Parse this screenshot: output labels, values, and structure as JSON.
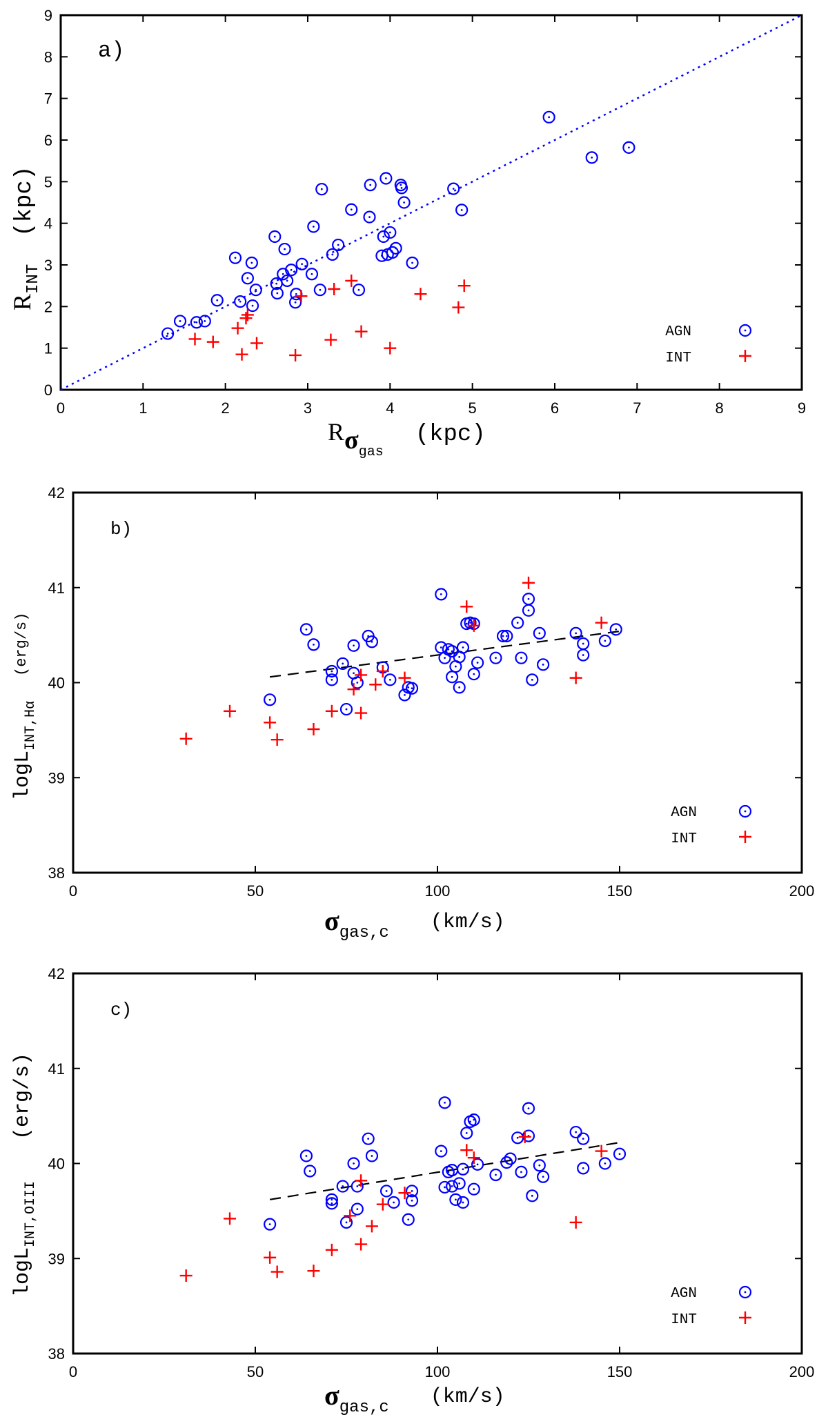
{
  "colors": {
    "agn": "#0000ff",
    "int": "#ff0000",
    "fit": "#000000",
    "diag": "#0000ff"
  },
  "chart_data": [
    {
      "type": "scatter",
      "panel_label": "a)",
      "x_axis_symbol": "R",
      "x_axis_sub": "σ",
      "x_axis_subsub": "gas",
      "x_axis_unit": "(kpc)",
      "y_axis_symbol": "R",
      "y_axis_sub": "INT",
      "y_axis_unit": "(kpc)",
      "xlim": [
        0,
        9
      ],
      "ylim": [
        0,
        9
      ],
      "x_ticks": [
        0,
        1,
        2,
        3,
        4,
        5,
        6,
        7,
        8,
        9
      ],
      "y_ticks": [
        0,
        1,
        2,
        3,
        4,
        5,
        6,
        7,
        8,
        9
      ],
      "legend": [
        "AGN",
        "INT"
      ],
      "legend_position": "bottom-right",
      "reference_line": {
        "style": "dotted",
        "x": [
          0,
          9
        ],
        "y": [
          0,
          9
        ]
      },
      "series": [
        {
          "name": "AGN",
          "marker": "circle-dot",
          "x": [
            1.3,
            1.45,
            1.65,
            1.75,
            1.9,
            2.12,
            2.18,
            2.27,
            2.32,
            2.33,
            2.37,
            2.6,
            2.62,
            2.63,
            2.7,
            2.72,
            2.75,
            2.8,
            2.85,
            2.86,
            2.93,
            3.05,
            3.07,
            3.15,
            3.17,
            3.3,
            3.37,
            3.53,
            3.62,
            3.75,
            3.76,
            3.9,
            3.92,
            3.95,
            3.97,
            4.0,
            4.03,
            4.07,
            4.13,
            4.14,
            4.17,
            4.27,
            4.77,
            4.87,
            5.93,
            6.45,
            6.9
          ],
          "y": [
            1.35,
            1.65,
            1.62,
            1.65,
            2.15,
            3.17,
            2.12,
            2.68,
            3.05,
            2.02,
            2.4,
            3.68,
            2.55,
            2.32,
            2.78,
            3.38,
            2.62,
            2.88,
            2.1,
            2.3,
            3.02,
            2.78,
            3.92,
            2.4,
            4.82,
            3.25,
            3.48,
            4.33,
            2.4,
            4.15,
            4.92,
            3.22,
            3.68,
            5.08,
            3.25,
            3.78,
            3.3,
            3.4,
            4.92,
            4.85,
            4.5,
            3.05,
            4.83,
            4.32,
            6.55,
            5.58,
            5.82
          ]
        },
        {
          "name": "INT",
          "marker": "plus",
          "x": [
            1.63,
            1.85,
            2.15,
            2.2,
            2.25,
            2.27,
            2.38,
            2.85,
            2.92,
            3.28,
            3.32,
            3.53,
            3.65,
            4.0,
            4.37,
            4.83,
            4.9
          ],
          "y": [
            1.22,
            1.15,
            1.48,
            0.85,
            1.72,
            1.8,
            1.12,
            0.83,
            2.25,
            1.2,
            2.42,
            2.62,
            1.4,
            1.0,
            2.3,
            1.98,
            2.5
          ]
        }
      ]
    },
    {
      "type": "scatter",
      "panel_label": "b)",
      "x_axis_symbol": "σ",
      "x_axis_sub": "gas,c",
      "x_axis_unit": "(km/s)",
      "y_axis_symbol": "logL",
      "y_axis_sub": "INT,Hα",
      "y_axis_unit": "(erg/s)",
      "xlim": [
        0,
        200
      ],
      "ylim": [
        38,
        42
      ],
      "x_ticks": [
        0,
        50,
        100,
        150,
        200
      ],
      "y_ticks": [
        38,
        39,
        40,
        41,
        42
      ],
      "legend": [
        "AGN",
        "INT"
      ],
      "legend_position": "bottom-right",
      "fit_line": {
        "style": "dashed",
        "x": [
          54,
          150
        ],
        "y": [
          40.06,
          40.54
        ]
      },
      "series": [
        {
          "name": "AGN",
          "marker": "circle-dot",
          "x": [
            54,
            64,
            66,
            71,
            71,
            74,
            75,
            77,
            77,
            78,
            81,
            82,
            85,
            87,
            91,
            92,
            93,
            101,
            101,
            102,
            103,
            104,
            104,
            105,
            106,
            106,
            107,
            108,
            109,
            110,
            110,
            111,
            116,
            118,
            119,
            122,
            123,
            125,
            125,
            126,
            128,
            129,
            138,
            140,
            140,
            146,
            149
          ],
          "y": [
            39.82,
            40.56,
            40.4,
            40.12,
            40.03,
            40.2,
            39.72,
            40.39,
            40.1,
            40.0,
            40.49,
            40.43,
            40.16,
            40.03,
            39.87,
            39.95,
            39.94,
            40.37,
            40.93,
            40.26,
            40.35,
            40.33,
            40.06,
            40.17,
            40.27,
            39.95,
            40.37,
            40.62,
            40.63,
            40.62,
            40.09,
            40.21,
            40.26,
            40.49,
            40.49,
            40.63,
            40.26,
            40.88,
            40.76,
            40.03,
            40.52,
            40.19,
            40.52,
            40.29,
            40.41,
            40.44,
            40.56
          ]
        },
        {
          "name": "INT",
          "marker": "plus",
          "x": [
            31,
            43,
            54,
            56,
            66,
            71,
            77,
            79,
            79,
            83,
            85,
            91,
            108,
            110,
            125,
            138,
            145
          ],
          "y": [
            39.41,
            39.7,
            39.58,
            39.4,
            39.51,
            39.7,
            39.93,
            39.68,
            40.08,
            39.98,
            40.12,
            40.05,
            40.8,
            40.6,
            41.05,
            40.05,
            40.63
          ]
        }
      ]
    },
    {
      "type": "scatter",
      "panel_label": "c)",
      "x_axis_symbol": "σ",
      "x_axis_sub": "gas,c",
      "x_axis_unit": "(km/s)",
      "y_axis_symbol": "logL",
      "y_axis_sub": "INT,OIII",
      "y_axis_unit": "(erg/s)",
      "xlim": [
        0,
        200
      ],
      "ylim": [
        38,
        42
      ],
      "x_ticks": [
        0,
        50,
        100,
        150,
        200
      ],
      "y_ticks": [
        38,
        39,
        40,
        41,
        42
      ],
      "legend": [
        "AGN",
        "INT"
      ],
      "legend_position": "bottom-right",
      "fit_line": {
        "style": "dashed",
        "x": [
          54,
          150
        ],
        "y": [
          39.62,
          40.22
        ]
      },
      "series": [
        {
          "name": "AGN",
          "marker": "circle-dot",
          "x": [
            54,
            64,
            65,
            71,
            71,
            74,
            75,
            77,
            78,
            78,
            81,
            82,
            86,
            88,
            92,
            93,
            93,
            101,
            102,
            102,
            103,
            104,
            104,
            105,
            106,
            107,
            107,
            108,
            109,
            110,
            110,
            111,
            116,
            119,
            120,
            122,
            123,
            125,
            125,
            126,
            128,
            129,
            138,
            140,
            140,
            146,
            150
          ],
          "y": [
            39.36,
            40.08,
            39.92,
            39.62,
            39.58,
            39.76,
            39.38,
            40.0,
            39.52,
            39.76,
            40.26,
            40.08,
            39.71,
            39.59,
            39.41,
            39.71,
            39.61,
            40.13,
            40.64,
            39.75,
            39.91,
            39.93,
            39.76,
            39.62,
            39.79,
            39.59,
            39.94,
            40.32,
            40.44,
            40.46,
            39.73,
            39.99,
            39.88,
            40.01,
            40.05,
            40.27,
            39.91,
            40.58,
            40.29,
            39.66,
            39.98,
            39.86,
            40.33,
            40.26,
            39.95,
            40.0,
            40.1
          ]
        },
        {
          "name": "INT",
          "marker": "plus",
          "x": [
            31,
            43,
            54,
            56,
            66,
            71,
            76,
            79,
            79,
            82,
            85,
            91,
            108,
            110,
            124,
            138,
            145
          ],
          "y": [
            38.82,
            39.42,
            39.01,
            38.86,
            38.87,
            39.09,
            39.45,
            39.15,
            39.82,
            39.34,
            39.57,
            39.69,
            40.14,
            40.06,
            40.28,
            39.38,
            40.13
          ]
        }
      ]
    }
  ]
}
